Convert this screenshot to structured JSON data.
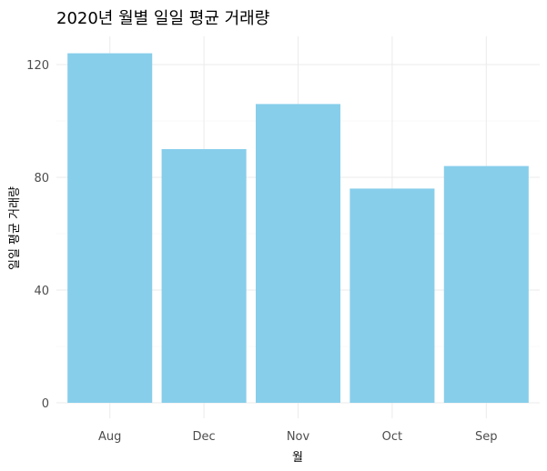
{
  "chart_data": {
    "type": "bar",
    "title": "2020년 월별 일일 평균 거래량",
    "xlabel": "월",
    "ylabel": "일일 평균 거래량",
    "categories": [
      "Aug",
      "Dec",
      "Nov",
      "Oct",
      "Sep"
    ],
    "values": [
      124,
      90,
      106,
      76,
      84
    ],
    "ylim": [
      0,
      130
    ],
    "yticks": [
      "0",
      "40",
      "80",
      "120"
    ],
    "bar_color": "#87CEEB",
    "grid": true,
    "legend": "none"
  }
}
